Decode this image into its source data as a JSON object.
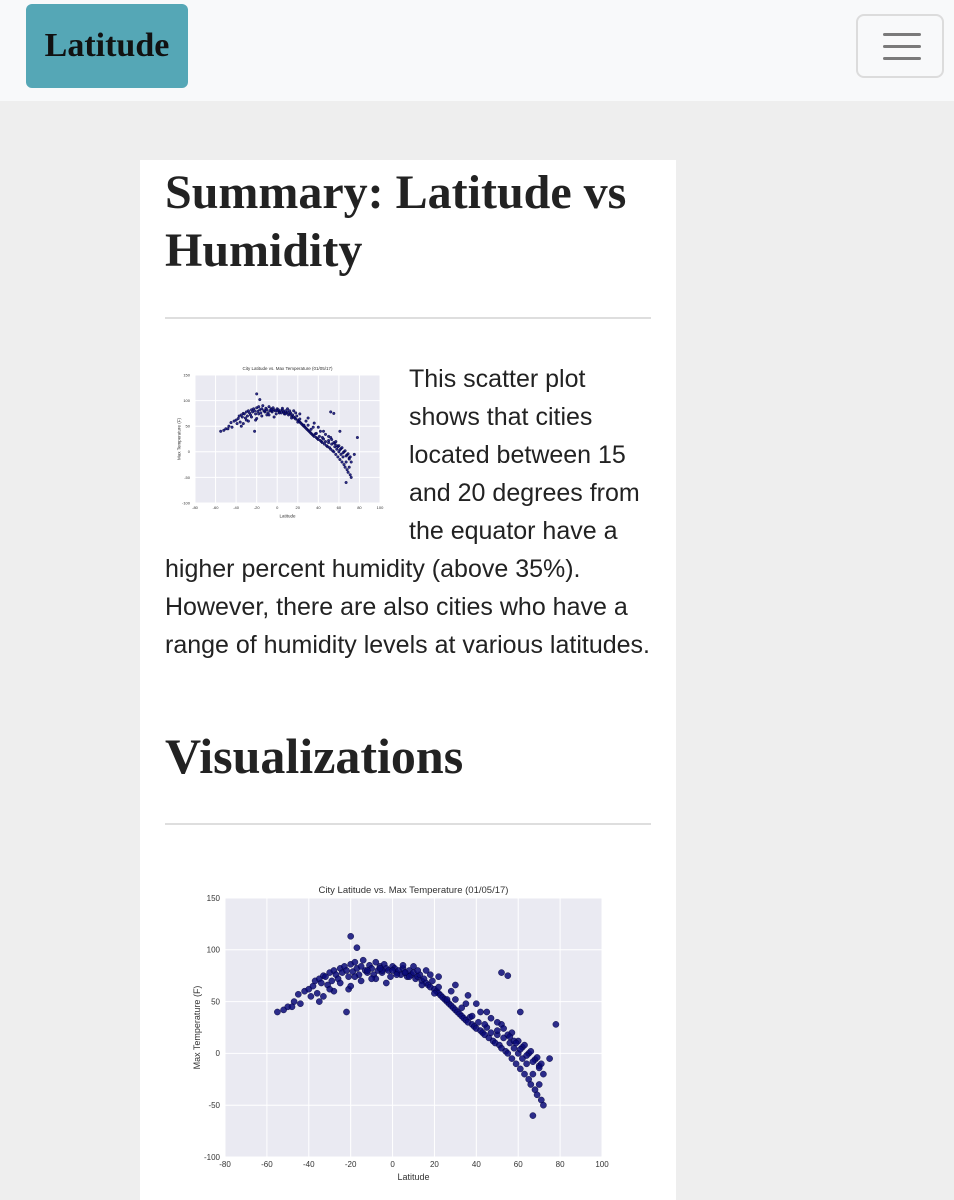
{
  "navbar": {
    "brand": "Latitude",
    "toggler_icon": "hamburger-menu-icon"
  },
  "page": {
    "title": "Summary: Latitude vs Humidity",
    "summary_text": "This scatter plot shows that cities located between 15 and 20 degrees from the equator have a higher percent humidity (above 35%). However, there are also cities who have a range of humidity levels at various latitudes.",
    "visualizations_title": "Visualizations"
  },
  "colors": {
    "brand_bg": "#55a7b6",
    "plot_bg": "#eaeaf2",
    "point": "#0a0a78"
  },
  "chart_data": [
    {
      "type": "scatter",
      "title": "City Latitude vs. Max Temperature (01/05/17)",
      "xlabel": "Latitude",
      "ylabel": "Max Temperature (F)",
      "xlim": [
        -80,
        100
      ],
      "ylim": [
        -100,
        150
      ],
      "xticks": [
        -80,
        -60,
        -40,
        -20,
        0,
        20,
        40,
        60,
        80,
        100
      ],
      "yticks": [
        -100,
        -50,
        0,
        50,
        100,
        150
      ],
      "grid": true,
      "x": [
        -55,
        -52,
        -50,
        -47,
        -45,
        -44,
        -42,
        -40,
        -38,
        -37,
        -36,
        -35,
        -34,
        -33,
        -32,
        -31,
        -30,
        -29,
        -28,
        -27,
        -26,
        -25,
        -24,
        -23,
        -22,
        -21,
        -20,
        -20,
        -19,
        -18,
        -17,
        -16,
        -15,
        -14,
        -13,
        -12,
        -11,
        -10,
        -9,
        -8,
        -7,
        -6,
        -5,
        -4,
        -3,
        -2,
        -1,
        0,
        1,
        2,
        3,
        4,
        5,
        6,
        7,
        8,
        9,
        10,
        11,
        12,
        13,
        14,
        15,
        16,
        17,
        18,
        19,
        20,
        21,
        22,
        23,
        24,
        25,
        26,
        27,
        28,
        29,
        30,
        31,
        32,
        33,
        34,
        35,
        36,
        37,
        38,
        39,
        40,
        41,
        42,
        43,
        44,
        45,
        46,
        47,
        48,
        49,
        50,
        51,
        52,
        53,
        54,
        55,
        56,
        57,
        58,
        59,
        60,
        61,
        62,
        63,
        64,
        65,
        66,
        67,
        68,
        69,
        70,
        71,
        72,
        -35,
        -28,
        -21,
        -15,
        -8,
        -3,
        2,
        8,
        14,
        20,
        26,
        33,
        38,
        44,
        50,
        55,
        60,
        62,
        65,
        68,
        70,
        72,
        78,
        -33,
        -20,
        -10,
        -5,
        5,
        12,
        18,
        28,
        35,
        42,
        47,
        52,
        57,
        58,
        63,
        66,
        69,
        71,
        -48,
        -39,
        -30,
        -25,
        -18,
        -12,
        -6,
        0,
        6,
        10,
        16,
        22,
        30,
        36,
        40,
        45,
        50,
        53,
        56,
        59,
        61,
        64,
        67,
        70,
        75,
        -22,
        -17,
        22,
        30,
        52,
        55,
        61,
        67
      ],
      "y": [
        40,
        42,
        45,
        50,
        57,
        48,
        60,
        62,
        65,
        70,
        58,
        72,
        68,
        75,
        74,
        66,
        78,
        70,
        80,
        76,
        72,
        82,
        78,
        84,
        80,
        74,
        86,
        113,
        79,
        88,
        82,
        76,
        84,
        90,
        80,
        78,
        85,
        82,
        76,
        88,
        80,
        84,
        78,
        86,
        82,
        80,
        74,
        84,
        82,
        78,
        80,
        76,
        82,
        78,
        74,
        80,
        76,
        78,
        72,
        74,
        76,
        70,
        72,
        68,
        66,
        64,
        70,
        62,
        60,
        58,
        56,
        54,
        52,
        50,
        48,
        46,
        44,
        42,
        40,
        38,
        36,
        34,
        32,
        30,
        35,
        28,
        26,
        24,
        30,
        22,
        20,
        18,
        25,
        15,
        20,
        12,
        10,
        18,
        8,
        5,
        15,
        2,
        0,
        10,
        -5,
        5,
        -10,
        0,
        -15,
        -5,
        -20,
        -10,
        -25,
        -30,
        -20,
        -35,
        -40,
        -30,
        -45,
        -50,
        50,
        60,
        62,
        70,
        72,
        68,
        76,
        74,
        66,
        58,
        52,
        44,
        36,
        28,
        22,
        18,
        12,
        6,
        0,
        -6,
        -12,
        -20,
        28,
        55,
        65,
        72,
        80,
        85,
        80,
        76,
        60,
        48,
        40,
        34,
        28,
        20,
        12,
        8,
        2,
        -4,
        -10,
        45,
        55,
        62,
        68,
        74,
        80,
        82,
        80,
        78,
        84,
        80,
        74,
        66,
        56,
        48,
        40,
        30,
        24,
        16,
        10,
        4,
        -2,
        -8,
        -14,
        -5,
        40,
        102,
        64,
        52,
        78,
        75,
        40,
        -60
      ]
    }
  ]
}
